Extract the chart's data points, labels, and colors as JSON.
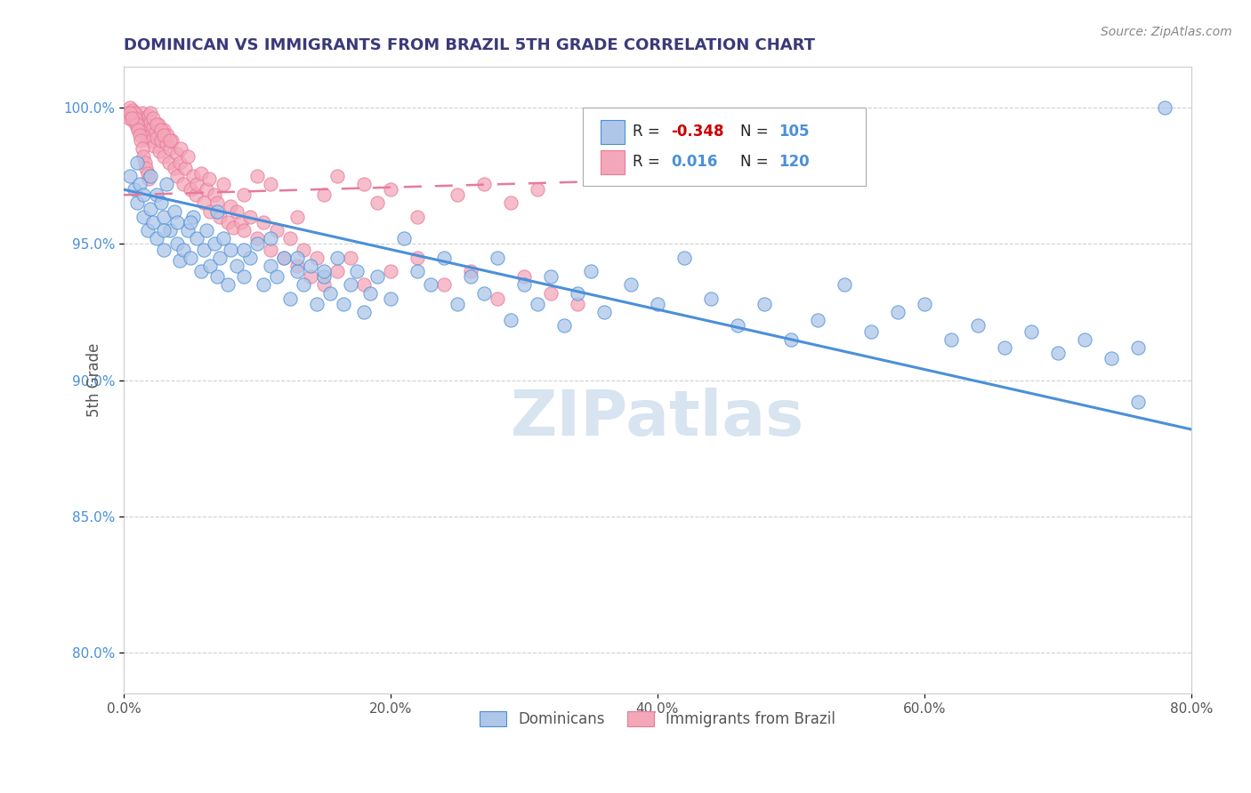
{
  "title": "DOMINICAN VS IMMIGRANTS FROM BRAZIL 5TH GRADE CORRELATION CHART",
  "source_text": "Source: ZipAtlas.com",
  "ylabel": "5th Grade",
  "xlabel_ticks": [
    "0.0%",
    "20.0%",
    "40.0%",
    "60.0%",
    "80.0%"
  ],
  "ytick_labels": [
    "80.0%",
    "85.0%",
    "90.0%",
    "95.0%",
    "100.0%"
  ],
  "xlim": [
    0.0,
    0.8
  ],
  "ylim": [
    0.785,
    1.015
  ],
  "blue_R": -0.348,
  "blue_N": 105,
  "pink_R": 0.016,
  "pink_N": 120,
  "blue_color": "#aec6e8",
  "pink_color": "#f4a7b9",
  "blue_edge_color": "#4a90d9",
  "pink_edge_color": "#e87a9a",
  "blue_line_color": "#4a90d9",
  "pink_line_color": "#e87a9a",
  "grid_color": "#cccccc",
  "title_color": "#3a3a7a",
  "legend_r_neg_color": "#cc0000",
  "legend_r_pos_color": "#4a90d9",
  "legend_n_color": "#4a90d9",
  "watermark_color": "#d8e4f0",
  "blue_trend_x": [
    0.0,
    0.8
  ],
  "blue_trend_y": [
    0.97,
    0.882
  ],
  "pink_trend_x": [
    0.0,
    0.5
  ],
  "pink_trend_y": [
    0.968,
    0.975
  ],
  "blue_scatter_x": [
    0.005,
    0.008,
    0.01,
    0.01,
    0.012,
    0.015,
    0.015,
    0.018,
    0.02,
    0.02,
    0.022,
    0.025,
    0.025,
    0.028,
    0.03,
    0.03,
    0.032,
    0.035,
    0.038,
    0.04,
    0.04,
    0.042,
    0.045,
    0.048,
    0.05,
    0.052,
    0.055,
    0.058,
    0.06,
    0.062,
    0.065,
    0.068,
    0.07,
    0.072,
    0.075,
    0.078,
    0.08,
    0.085,
    0.09,
    0.095,
    0.1,
    0.105,
    0.11,
    0.115,
    0.12,
    0.125,
    0.13,
    0.135,
    0.14,
    0.145,
    0.15,
    0.155,
    0.16,
    0.165,
    0.17,
    0.175,
    0.18,
    0.185,
    0.19,
    0.2,
    0.21,
    0.22,
    0.23,
    0.24,
    0.25,
    0.26,
    0.27,
    0.28,
    0.29,
    0.3,
    0.31,
    0.32,
    0.33,
    0.34,
    0.35,
    0.36,
    0.38,
    0.4,
    0.42,
    0.44,
    0.46,
    0.48,
    0.5,
    0.52,
    0.54,
    0.56,
    0.58,
    0.6,
    0.62,
    0.64,
    0.66,
    0.68,
    0.7,
    0.72,
    0.74,
    0.76,
    0.03,
    0.05,
    0.07,
    0.09,
    0.11,
    0.13,
    0.15,
    0.76,
    0.78
  ],
  "blue_scatter_y": [
    0.975,
    0.97,
    0.98,
    0.965,
    0.972,
    0.96,
    0.968,
    0.955,
    0.975,
    0.963,
    0.958,
    0.968,
    0.952,
    0.965,
    0.96,
    0.948,
    0.972,
    0.955,
    0.962,
    0.95,
    0.958,
    0.944,
    0.948,
    0.955,
    0.945,
    0.96,
    0.952,
    0.94,
    0.948,
    0.955,
    0.942,
    0.95,
    0.938,
    0.945,
    0.952,
    0.935,
    0.948,
    0.942,
    0.938,
    0.945,
    0.95,
    0.935,
    0.942,
    0.938,
    0.945,
    0.93,
    0.94,
    0.935,
    0.942,
    0.928,
    0.938,
    0.932,
    0.945,
    0.928,
    0.935,
    0.94,
    0.925,
    0.932,
    0.938,
    0.93,
    0.952,
    0.94,
    0.935,
    0.945,
    0.928,
    0.938,
    0.932,
    0.945,
    0.922,
    0.935,
    0.928,
    0.938,
    0.92,
    0.932,
    0.94,
    0.925,
    0.935,
    0.928,
    0.945,
    0.93,
    0.92,
    0.928,
    0.915,
    0.922,
    0.935,
    0.918,
    0.925,
    0.928,
    0.915,
    0.92,
    0.912,
    0.918,
    0.91,
    0.915,
    0.908,
    0.912,
    0.955,
    0.958,
    0.962,
    0.948,
    0.952,
    0.945,
    0.94,
    0.892,
    1.0
  ],
  "pink_scatter_x": [
    0.002,
    0.004,
    0.005,
    0.006,
    0.007,
    0.008,
    0.009,
    0.01,
    0.01,
    0.011,
    0.012,
    0.013,
    0.014,
    0.015,
    0.015,
    0.016,
    0.017,
    0.018,
    0.019,
    0.02,
    0.02,
    0.021,
    0.022,
    0.023,
    0.024,
    0.025,
    0.026,
    0.027,
    0.028,
    0.03,
    0.03,
    0.032,
    0.033,
    0.034,
    0.035,
    0.036,
    0.038,
    0.04,
    0.04,
    0.042,
    0.043,
    0.045,
    0.046,
    0.048,
    0.05,
    0.052,
    0.054,
    0.055,
    0.058,
    0.06,
    0.062,
    0.064,
    0.065,
    0.068,
    0.07,
    0.072,
    0.075,
    0.078,
    0.08,
    0.082,
    0.085,
    0.088,
    0.09,
    0.095,
    0.1,
    0.105,
    0.11,
    0.115,
    0.12,
    0.125,
    0.13,
    0.135,
    0.14,
    0.145,
    0.15,
    0.16,
    0.17,
    0.18,
    0.2,
    0.22,
    0.24,
    0.26,
    0.28,
    0.3,
    0.32,
    0.34,
    0.008,
    0.009,
    0.01,
    0.011,
    0.012,
    0.013,
    0.014,
    0.015,
    0.016,
    0.017,
    0.018,
    0.019,
    0.005,
    0.006,
    0.25,
    0.27,
    0.29,
    0.31,
    0.02,
    0.022,
    0.025,
    0.028,
    0.03,
    0.035,
    0.15,
    0.16,
    0.19,
    0.22,
    0.18,
    0.2,
    0.09,
    0.1,
    0.11,
    0.13
  ],
  "pink_scatter_y": [
    0.998,
    0.996,
    1.0,
    0.997,
    0.999,
    0.995,
    0.998,
    0.993,
    0.997,
    0.996,
    0.994,
    0.992,
    0.998,
    0.996,
    0.991,
    0.994,
    0.989,
    0.992,
    0.997,
    0.99,
    0.995,
    0.988,
    0.993,
    0.986,
    0.991,
    0.989,
    0.994,
    0.984,
    0.988,
    0.992,
    0.982,
    0.987,
    0.99,
    0.98,
    0.985,
    0.988,
    0.978,
    0.983,
    0.975,
    0.98,
    0.985,
    0.972,
    0.978,
    0.982,
    0.97,
    0.975,
    0.968,
    0.972,
    0.976,
    0.965,
    0.97,
    0.974,
    0.962,
    0.968,
    0.965,
    0.96,
    0.972,
    0.958,
    0.964,
    0.956,
    0.962,
    0.958,
    0.955,
    0.96,
    0.952,
    0.958,
    0.948,
    0.955,
    0.945,
    0.952,
    0.942,
    0.948,
    0.938,
    0.945,
    0.935,
    0.94,
    0.945,
    0.935,
    0.94,
    0.945,
    0.935,
    0.94,
    0.93,
    0.938,
    0.932,
    0.928,
    0.998,
    0.996,
    0.994,
    0.992,
    0.99,
    0.988,
    0.985,
    0.982,
    0.98,
    0.978,
    0.976,
    0.974,
    0.998,
    0.996,
    0.968,
    0.972,
    0.965,
    0.97,
    0.998,
    0.996,
    0.994,
    0.992,
    0.99,
    0.988,
    0.968,
    0.975,
    0.965,
    0.96,
    0.972,
    0.97,
    0.968,
    0.975,
    0.972,
    0.96
  ]
}
